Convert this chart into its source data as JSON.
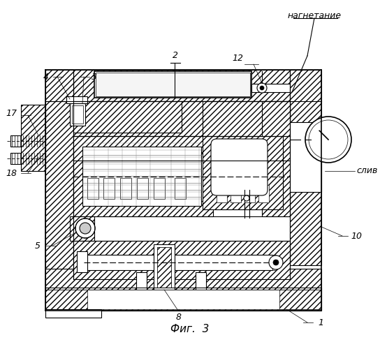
{
  "bg_color": "#ffffff",
  "line_color": "#000000",
  "nagnetanie": "нагнетание",
  "sliv": "слив",
  "fig_label": "Фиг.  3",
  "part_labels": [
    "1",
    "2",
    "3",
    "4",
    "5",
    "8",
    "10",
    "12",
    "17",
    "18"
  ]
}
